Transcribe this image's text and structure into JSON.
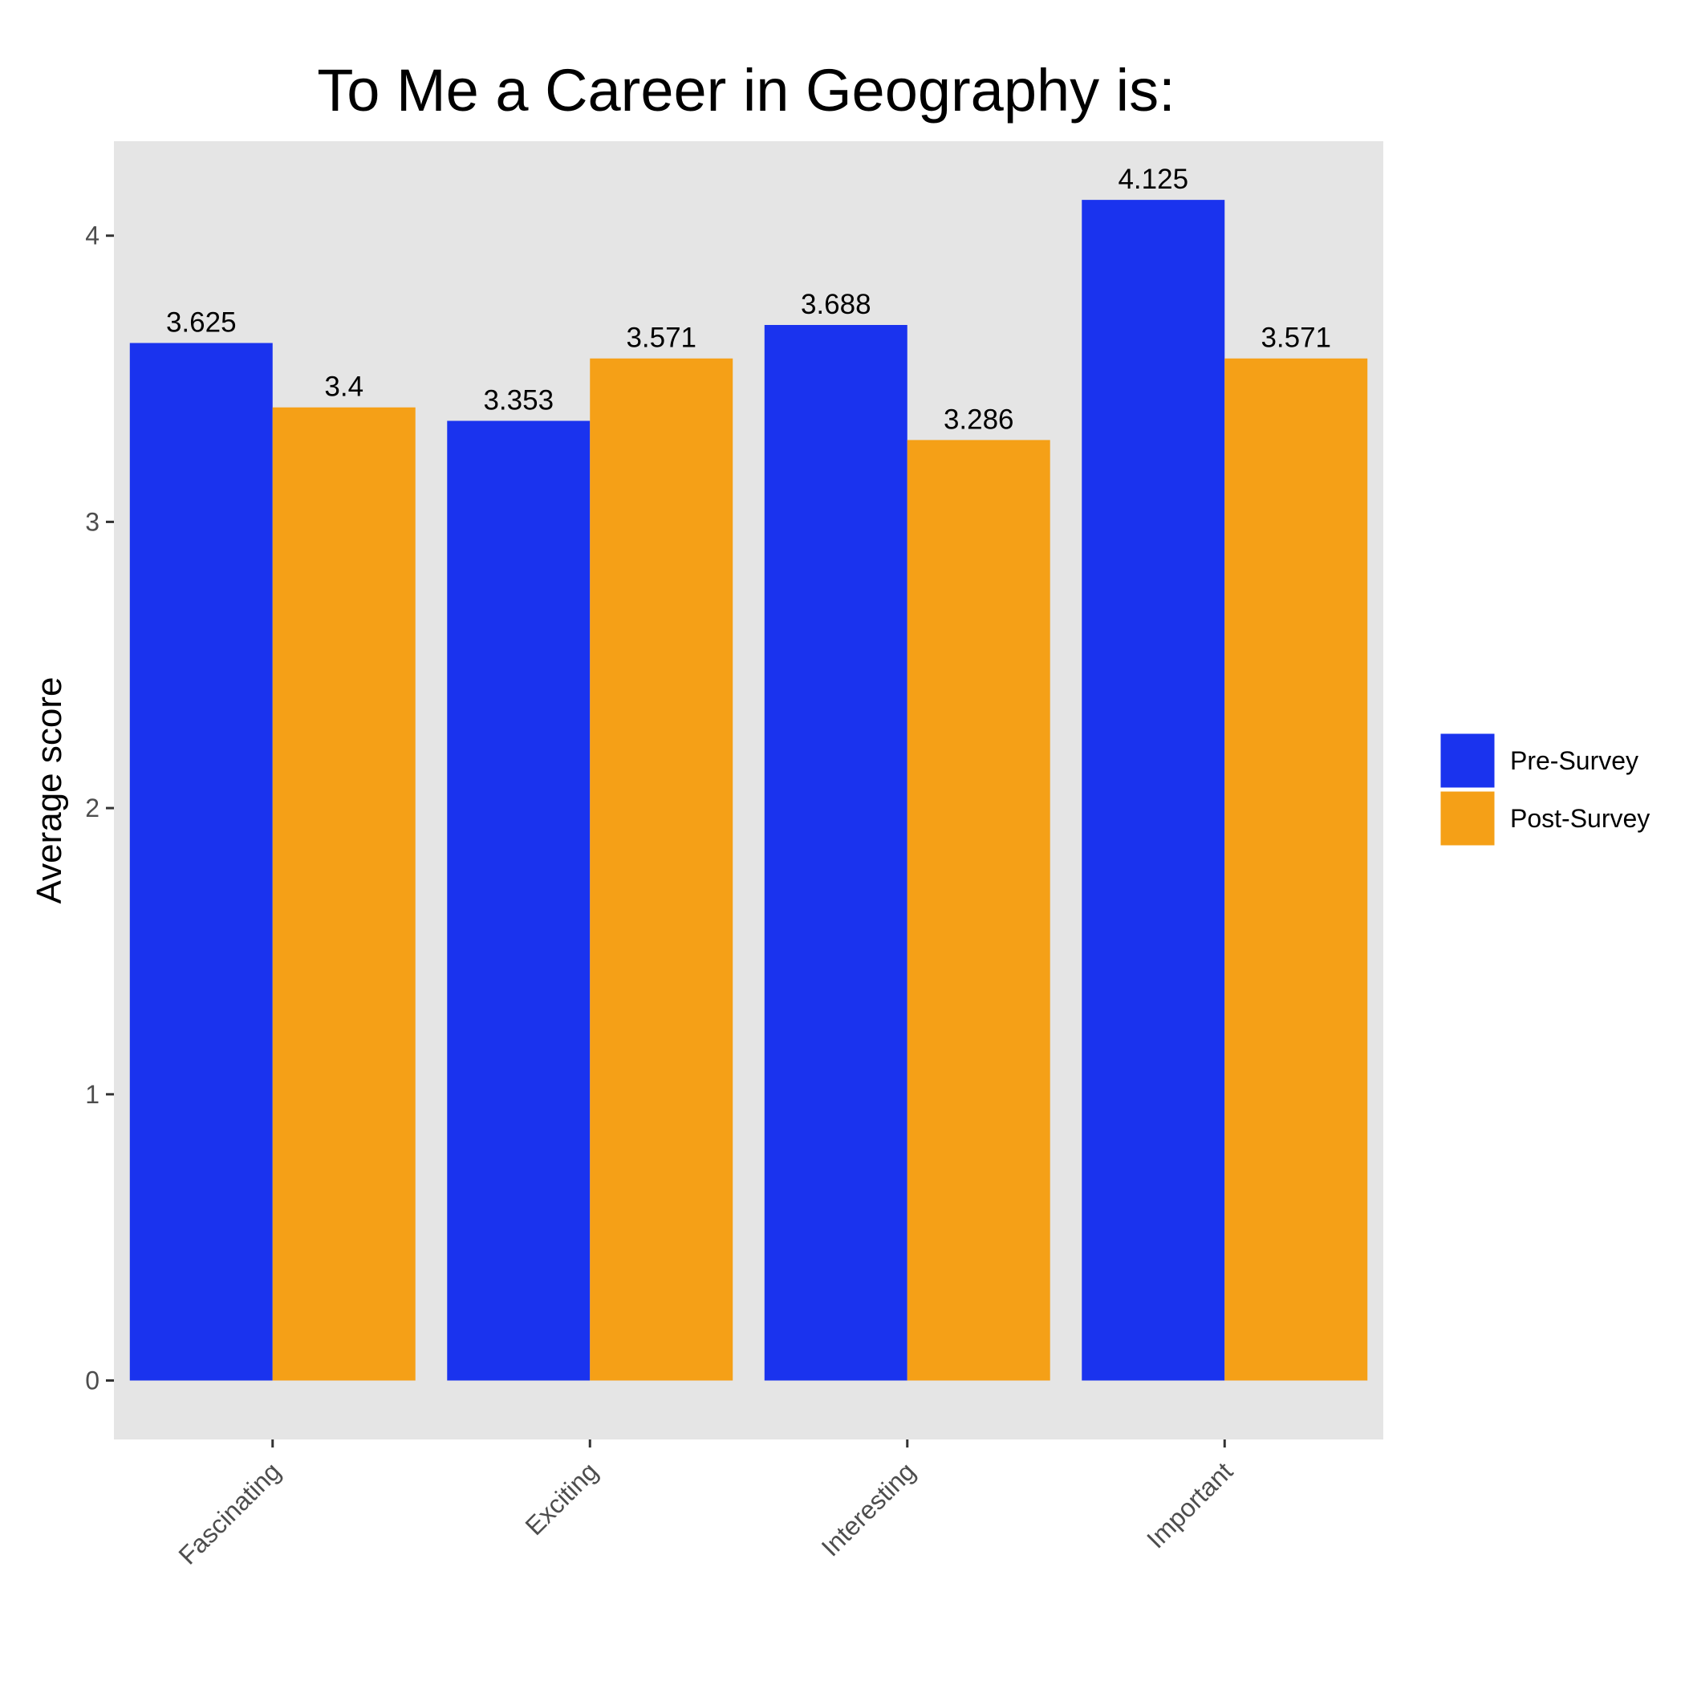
{
  "chart_data": {
    "type": "bar",
    "title": "To Me a Career in Geography is:",
    "xlabel": "",
    "ylabel": "Average score",
    "categories": [
      "Fascinating",
      "Exciting",
      "Interesting",
      "Important"
    ],
    "series": [
      {
        "name": "Pre-Survey",
        "color": "#1a33ee",
        "values": [
          3.625,
          3.353,
          3.688,
          4.125
        ],
        "labels": [
          "3.625",
          "3.353",
          "3.688",
          "4.125"
        ]
      },
      {
        "name": "Post-Survey",
        "color": "#f5a017",
        "values": [
          3.4,
          3.571,
          3.286,
          3.571
        ],
        "labels": [
          "3.4",
          "3.571",
          "3.286",
          "3.571"
        ]
      }
    ],
    "ylim": [
      -0.206,
      4.33
    ],
    "yticks": [
      0,
      1,
      2,
      3,
      4
    ],
    "grid": false,
    "panel_background": "#e5e5e5",
    "legend_position": "right"
  }
}
